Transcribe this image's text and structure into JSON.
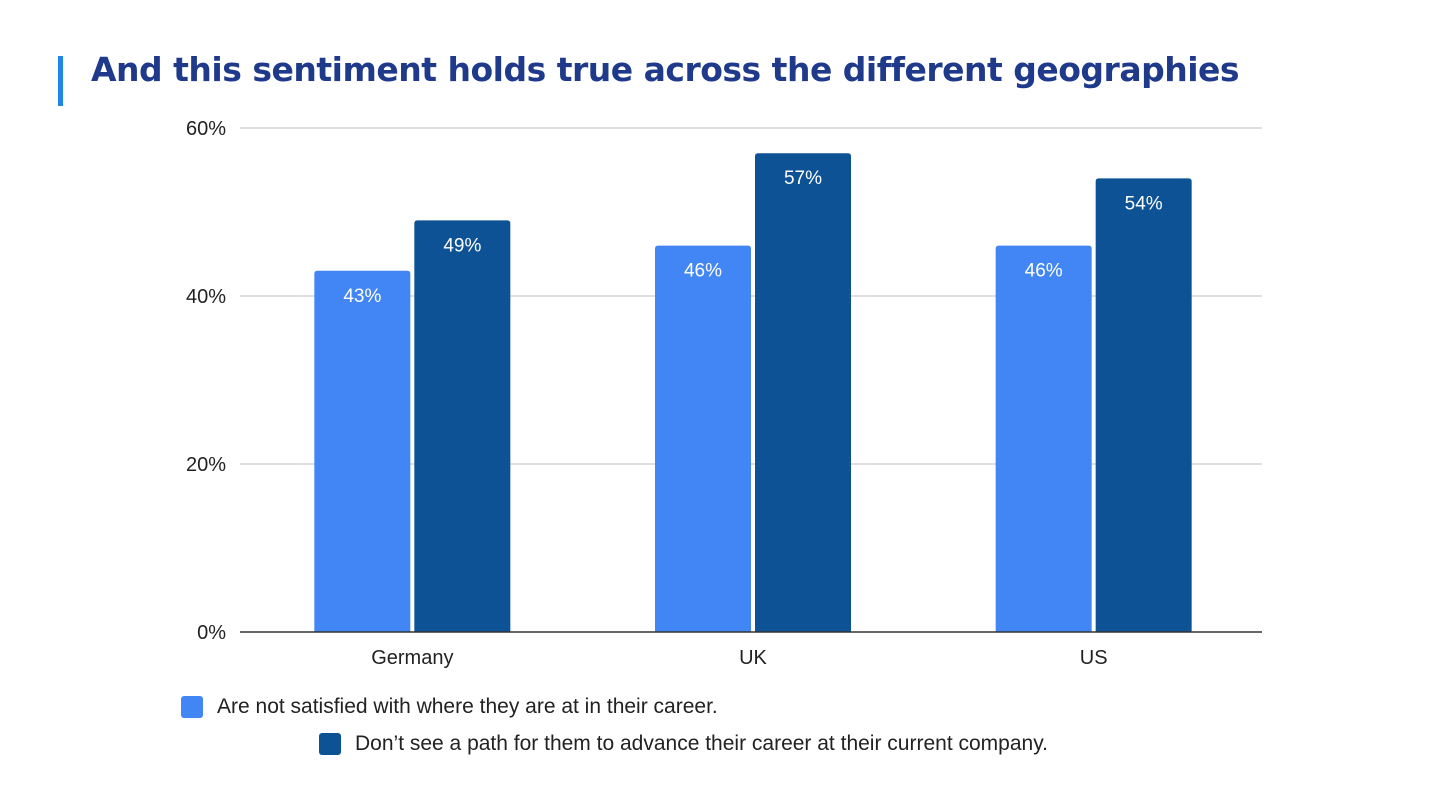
{
  "title": "And this sentiment holds true across the different geographies",
  "colors": {
    "accent_bar": "#1e88e5",
    "title": "#1f3a8a",
    "series1": "#4285f4",
    "series2": "#0d5295"
  },
  "chart_data": {
    "type": "bar",
    "categories": [
      "Germany",
      "UK",
      "US"
    ],
    "series": [
      {
        "name": "Are not satisfied with where they are at in their career.",
        "values": [
          43,
          46,
          46
        ],
        "labels": [
          "43%",
          "46%",
          "46%"
        ]
      },
      {
        "name": "Don’t see a path for them to advance their career at their current company.",
        "values": [
          49,
          57,
          54
        ],
        "labels": [
          "49%",
          "57%",
          "54%"
        ]
      }
    ],
    "ylim": [
      0,
      60
    ],
    "yticks": [
      0,
      20,
      40,
      60
    ],
    "ytick_labels": [
      "0%",
      "20%",
      "40%",
      "60%"
    ],
    "grid": true,
    "legend_position": "bottom"
  }
}
